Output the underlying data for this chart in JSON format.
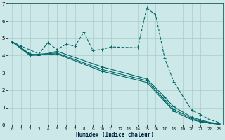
{
  "xlabel": "Humidex (Indice chaleur)",
  "background_color": "#cce8e8",
  "grid_color": "#aacccc",
  "line_color": "#006666",
  "xlim": [
    -0.5,
    23.5
  ],
  "ylim": [
    0,
    7
  ],
  "xticks": [
    0,
    1,
    2,
    3,
    4,
    5,
    6,
    7,
    8,
    9,
    10,
    11,
    12,
    13,
    14,
    15,
    16,
    17,
    18,
    19,
    20,
    21,
    22,
    23
  ],
  "yticks": [
    0,
    1,
    2,
    3,
    4,
    5,
    6,
    7
  ],
  "series": [
    {
      "style": "dashed",
      "x": [
        0,
        1,
        3,
        4,
        5,
        6,
        7,
        8,
        9,
        10,
        11,
        14,
        15,
        16,
        17,
        18,
        20,
        21,
        22,
        23
      ],
      "y": [
        4.8,
        4.55,
        4.1,
        4.75,
        4.35,
        4.65,
        4.55,
        5.35,
        4.3,
        4.35,
        4.5,
        4.45,
        6.75,
        6.35,
        3.85,
        2.5,
        0.85,
        0.6,
        0.3,
        0.15
      ]
    },
    {
      "style": "solid",
      "x": [
        0,
        2,
        3,
        5,
        10,
        15,
        17,
        18,
        20,
        21,
        22,
        23
      ],
      "y": [
        4.8,
        4.1,
        4.0,
        4.25,
        3.35,
        2.65,
        1.6,
        1.05,
        0.45,
        0.28,
        0.15,
        0.08
      ]
    },
    {
      "style": "solid",
      "x": [
        0,
        2,
        5,
        10,
        15,
        17,
        18,
        20,
        21,
        22,
        23
      ],
      "y": [
        4.8,
        4.05,
        4.15,
        3.2,
        2.55,
        1.45,
        0.9,
        0.38,
        0.22,
        0.12,
        0.05
      ]
    },
    {
      "style": "solid",
      "x": [
        0,
        2,
        5,
        10,
        15,
        17,
        18,
        20,
        21,
        22,
        23
      ],
      "y": [
        4.8,
        4.0,
        4.1,
        3.1,
        2.45,
        1.35,
        0.8,
        0.3,
        0.18,
        0.1,
        0.04
      ]
    }
  ]
}
